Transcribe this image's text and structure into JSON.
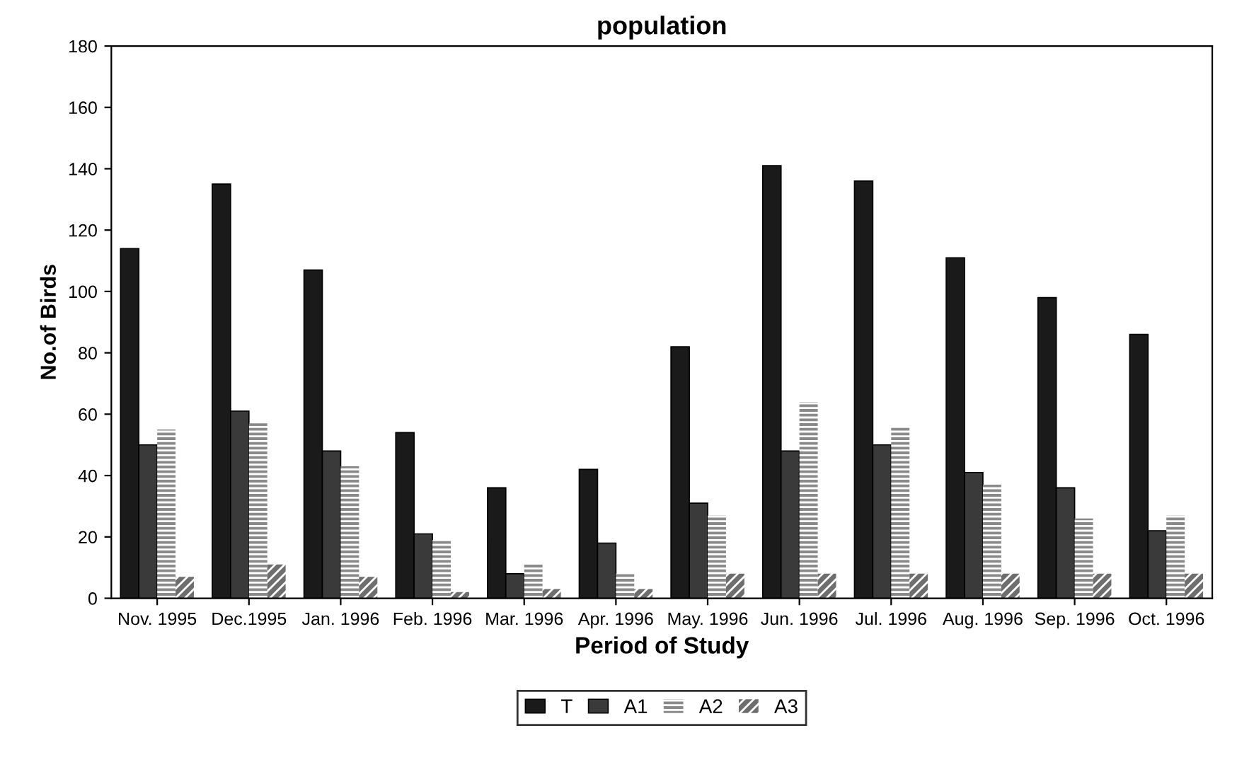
{
  "chart_data": {
    "type": "bar",
    "title": "population",
    "xlabel": "Period of Study",
    "ylabel": "No.of Birds",
    "categories": [
      "Nov. 1995",
      "Dec.1995",
      "Jan. 1996",
      "Feb. 1996",
      "Mar. 1996",
      "Apr. 1996",
      "May. 1996",
      "Jun. 1996",
      "Jul. 1996",
      "Aug. 1996",
      "Sep. 1996",
      "Oct. 1996"
    ],
    "series": [
      {
        "name": "T",
        "color": "#1a1a1a",
        "values": [
          114,
          135,
          107,
          54,
          36,
          42,
          82,
          141,
          136,
          111,
          98,
          86
        ]
      },
      {
        "name": "A1",
        "color": "#3a3a3a",
        "values": [
          50,
          61,
          48,
          21,
          8,
          18,
          31,
          48,
          50,
          41,
          36,
          22
        ]
      },
      {
        "name": "A2",
        "color": "#8a8a8a",
        "values": [
          55,
          57,
          43,
          19,
          11,
          8,
          27,
          64,
          56,
          37,
          26,
          27
        ]
      },
      {
        "name": "A3",
        "color": "#6e6e6e",
        "values": [
          7,
          11,
          7,
          2,
          3,
          3,
          8,
          8,
          8,
          8,
          8,
          8
        ]
      }
    ],
    "ylim": [
      0,
      180
    ],
    "yticks": [
      0,
      20,
      40,
      60,
      80,
      100,
      120,
      140,
      160,
      180
    ],
    "legend": "bottom",
    "grid": false
  }
}
